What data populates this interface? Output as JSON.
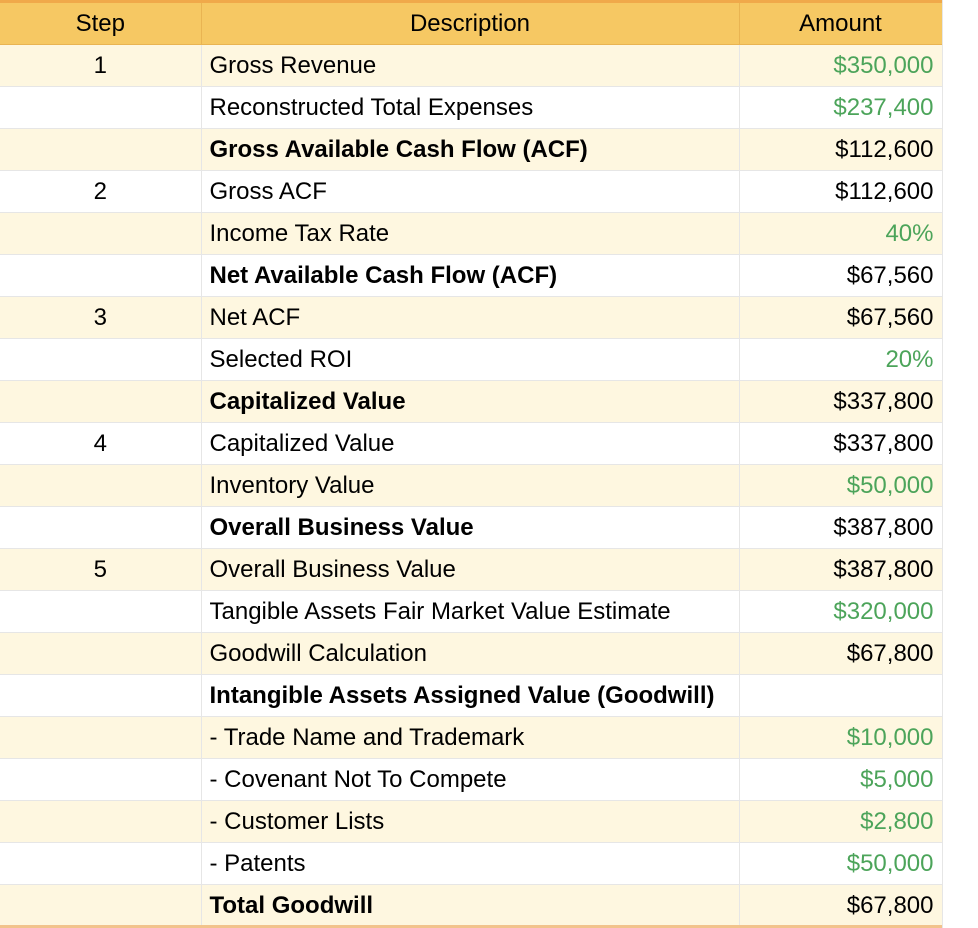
{
  "colors": {
    "header_bg": "#f6c863",
    "band_bg": "#fef7e0",
    "input_green": "#4ca45a",
    "accent_border": "#f0a94a"
  },
  "headers": {
    "step": "Step",
    "description": "Description",
    "amount": "Amount"
  },
  "rows": [
    {
      "step": "1",
      "description": "Gross Revenue",
      "amount": "$350,000",
      "bold": false,
      "green": true
    },
    {
      "step": "",
      "description": "Reconstructed Total Expenses",
      "amount": "$237,400",
      "bold": false,
      "green": true
    },
    {
      "step": "",
      "description": "Gross Available Cash Flow (ACF)",
      "amount": "$112,600",
      "bold": true,
      "green": false
    },
    {
      "step": "2",
      "description": "Gross ACF",
      "amount": "$112,600",
      "bold": false,
      "green": false
    },
    {
      "step": "",
      "description": "Income Tax Rate",
      "amount": "40%",
      "bold": false,
      "green": true
    },
    {
      "step": "",
      "description": "Net Available Cash Flow (ACF)",
      "amount": "$67,560",
      "bold": true,
      "green": false
    },
    {
      "step": "3",
      "description": "Net ACF",
      "amount": "$67,560",
      "bold": false,
      "green": false
    },
    {
      "step": "",
      "description": "Selected ROI",
      "amount": "20%",
      "bold": false,
      "green": true
    },
    {
      "step": "",
      "description": "Capitalized Value",
      "amount": "$337,800",
      "bold": true,
      "green": false
    },
    {
      "step": "4",
      "description": "Capitalized Value",
      "amount": "$337,800",
      "bold": false,
      "green": false
    },
    {
      "step": "",
      "description": "Inventory Value",
      "amount": "$50,000",
      "bold": false,
      "green": true
    },
    {
      "step": "",
      "description": "Overall Business Value",
      "amount": "$387,800",
      "bold": true,
      "green": false
    },
    {
      "step": "5",
      "description": "Overall Business Value",
      "amount": "$387,800",
      "bold": false,
      "green": false
    },
    {
      "step": "",
      "description": "Tangible Assets Fair Market Value Estimate",
      "amount": "$320,000",
      "bold": false,
      "green": true
    },
    {
      "step": "",
      "description": "Goodwill Calculation",
      "amount": "$67,800",
      "bold": false,
      "green": false
    },
    {
      "step": "",
      "description": "Intangible Assets Assigned Value (Goodwill)",
      "amount": "",
      "bold": true,
      "green": false
    },
    {
      "step": "",
      "description": "- Trade Name and Trademark",
      "amount": "$10,000",
      "bold": false,
      "green": true
    },
    {
      "step": "",
      "description": "- Covenant Not To Compete",
      "amount": "$5,000",
      "bold": false,
      "green": true
    },
    {
      "step": "",
      "description": "- Customer Lists",
      "amount": "$2,800",
      "bold": false,
      "green": true
    },
    {
      "step": "",
      "description": "- Patents",
      "amount": "$50,000",
      "bold": false,
      "green": true
    },
    {
      "step": "",
      "description": "Total Goodwill",
      "amount": "$67,800",
      "bold": true,
      "green": false
    }
  ]
}
